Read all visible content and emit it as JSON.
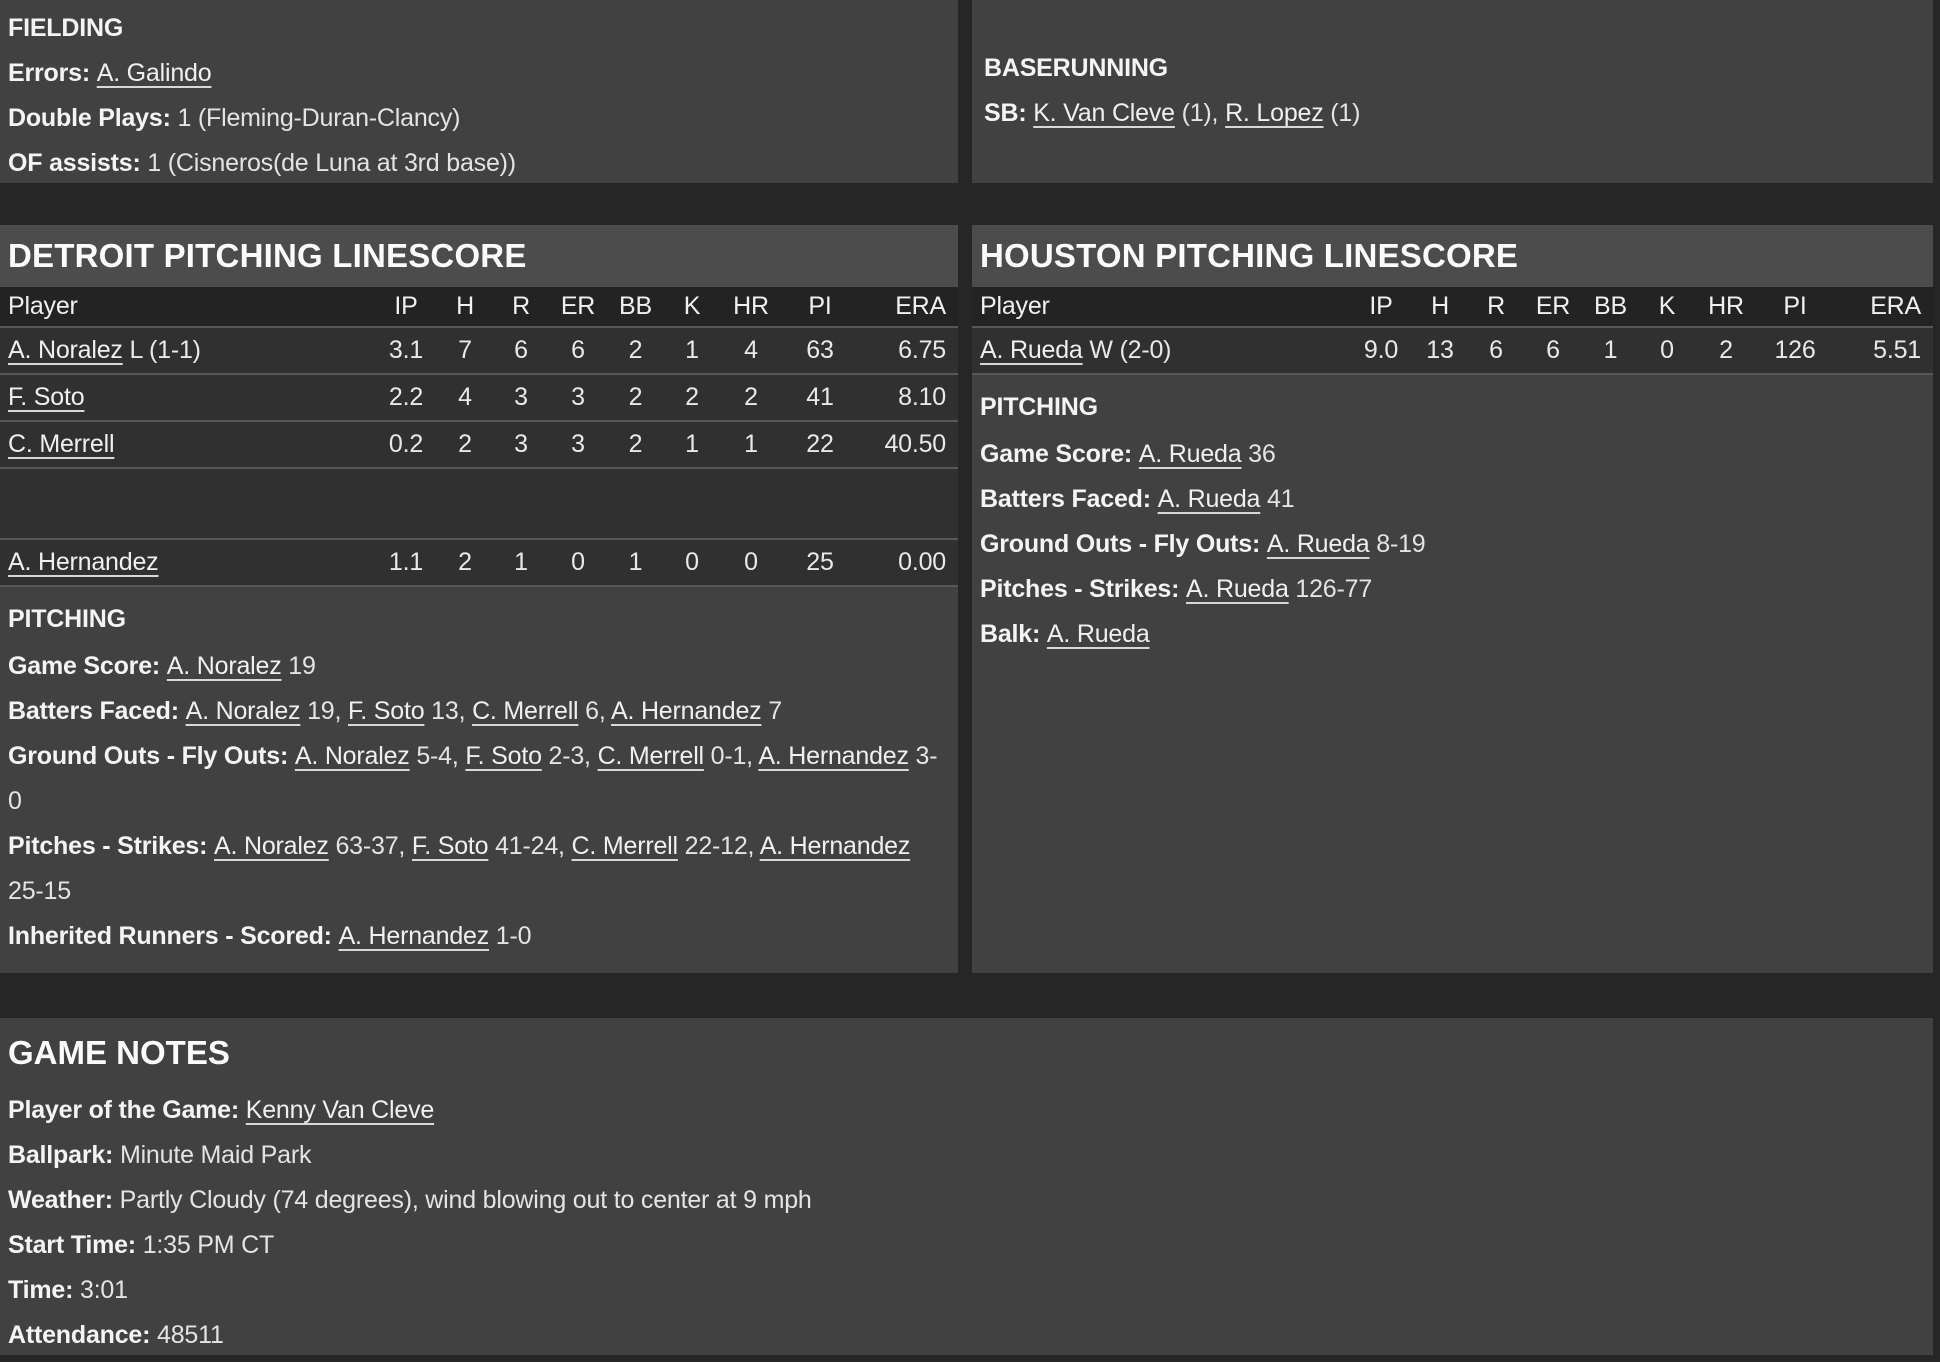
{
  "colors": {
    "page_background": "#262626",
    "panel_background": "#414141",
    "title_strip": "#4c4c4c",
    "table_header_row": "#232323",
    "table_data_row": "#303030",
    "row_separator": "#575757",
    "text": "#e9e9e9"
  },
  "fielding": {
    "title": "FIELDING",
    "lines": [
      {
        "label": "Errors:",
        "parts": [
          {
            "text": "A. Galindo",
            "link": true
          }
        ]
      },
      {
        "label": "Double Plays:",
        "parts": [
          {
            "text": "1 (Fleming-Duran-Clancy)"
          }
        ]
      },
      {
        "label": "OF assists:",
        "parts": [
          {
            "text": "1 (Cisneros(de Luna at 3rd base))"
          }
        ]
      }
    ]
  },
  "baserunning": {
    "title": "BASERUNNING",
    "lines": [
      {
        "label": "SB:",
        "parts": [
          {
            "text": "K. Van Cleve",
            "link": true
          },
          {
            "text": " (1), "
          },
          {
            "text": "R. Lopez",
            "link": true
          },
          {
            "text": " (1)"
          }
        ]
      }
    ]
  },
  "detroit_pitching": {
    "title": "DETROIT PITCHING LINESCORE",
    "columns": [
      "Player",
      "IP",
      "H",
      "R",
      "ER",
      "BB",
      "K",
      "HR",
      "PI",
      "ERA"
    ],
    "rows": [
      {
        "player": "A. Noralez",
        "decoration": "L (1-1)",
        "stats": [
          "3.1",
          "7",
          "6",
          "6",
          "2",
          "1",
          "4",
          "63",
          "6.75"
        ]
      },
      {
        "player": "F. Soto",
        "decoration": "",
        "stats": [
          "2.2",
          "4",
          "3",
          "3",
          "2",
          "2",
          "2",
          "41",
          "8.10"
        ]
      },
      {
        "player": "C. Merrell",
        "decoration": "",
        "stats": [
          "0.2",
          "2",
          "3",
          "3",
          "2",
          "1",
          "1",
          "22",
          "40.50"
        ]
      },
      {
        "blank": true
      },
      {
        "player": "A. Hernandez",
        "decoration": "",
        "stats": [
          "1.1",
          "2",
          "1",
          "0",
          "1",
          "0",
          "0",
          "25",
          "0.00"
        ]
      }
    ],
    "pitching_notes": {
      "title": "PITCHING",
      "lines": [
        {
          "label": "Game Score:",
          "parts": [
            {
              "text": "A. Noralez",
              "link": true
            },
            {
              "text": " 19"
            }
          ]
        },
        {
          "label": "Batters Faced:",
          "parts": [
            {
              "text": "A. Noralez",
              "link": true
            },
            {
              "text": " 19, "
            },
            {
              "text": "F. Soto",
              "link": true
            },
            {
              "text": " 13, "
            },
            {
              "text": "C. Merrell",
              "link": true
            },
            {
              "text": " 6, "
            },
            {
              "text": "A. Hernandez",
              "link": true
            },
            {
              "text": " 7"
            }
          ]
        },
        {
          "label": "Ground Outs - Fly Outs:",
          "parts": [
            {
              "text": "A. Noralez",
              "link": true
            },
            {
              "text": " 5-4, "
            },
            {
              "text": "F. Soto",
              "link": true
            },
            {
              "text": " 2-3, "
            },
            {
              "text": "C. Merrell",
              "link": true
            },
            {
              "text": " 0-1, "
            },
            {
              "text": "A. Hernandez",
              "link": true
            },
            {
              "text": " 3-0"
            }
          ]
        },
        {
          "label": "Pitches - Strikes:",
          "parts": [
            {
              "text": "A. Noralez",
              "link": true
            },
            {
              "text": " 63-37, "
            },
            {
              "text": "F. Soto",
              "link": true
            },
            {
              "text": " 41-24, "
            },
            {
              "text": "C. Merrell",
              "link": true
            },
            {
              "text": " 22-12, "
            },
            {
              "text": "A. Hernandez",
              "link": true
            },
            {
              "text": " 25-15"
            }
          ]
        },
        {
          "label": "Inherited Runners - Scored:",
          "parts": [
            {
              "text": "A. Hernandez",
              "link": true
            },
            {
              "text": " 1-0"
            }
          ]
        }
      ]
    }
  },
  "houston_pitching": {
    "title": "HOUSTON PITCHING LINESCORE",
    "columns": [
      "Player",
      "IP",
      "H",
      "R",
      "ER",
      "BB",
      "K",
      "HR",
      "PI",
      "ERA"
    ],
    "rows": [
      {
        "player": "A. Rueda",
        "decoration": "W (2-0)",
        "stats": [
          "9.0",
          "13",
          "6",
          "6",
          "1",
          "0",
          "2",
          "126",
          "5.51"
        ]
      }
    ],
    "pitching_notes": {
      "title": "PITCHING",
      "lines": [
        {
          "label": "Game Score:",
          "parts": [
            {
              "text": "A. Rueda",
              "link": true
            },
            {
              "text": " 36"
            }
          ]
        },
        {
          "label": "Batters Faced:",
          "parts": [
            {
              "text": "A. Rueda",
              "link": true
            },
            {
              "text": " 41"
            }
          ]
        },
        {
          "label": "Ground Outs - Fly Outs:",
          "parts": [
            {
              "text": "A. Rueda",
              "link": true
            },
            {
              "text": " 8-19"
            }
          ]
        },
        {
          "label": "Pitches - Strikes:",
          "parts": [
            {
              "text": "A. Rueda",
              "link": true
            },
            {
              "text": " 126-77"
            }
          ]
        },
        {
          "label": "Balk:",
          "parts": [
            {
              "text": "A. Rueda",
              "link": true
            }
          ]
        }
      ]
    }
  },
  "game_notes": {
    "title": "GAME NOTES",
    "lines": [
      {
        "label": "Player of the Game:",
        "parts": [
          {
            "text": "Kenny Van Cleve",
            "link": true
          }
        ]
      },
      {
        "label": "Ballpark:",
        "parts": [
          {
            "text": "Minute Maid Park"
          }
        ]
      },
      {
        "label": "Weather:",
        "parts": [
          {
            "text": "Partly Cloudy (74 degrees), wind blowing out to center at 9 mph"
          }
        ]
      },
      {
        "label": "Start Time:",
        "parts": [
          {
            "text": "1:35 PM CT"
          }
        ]
      },
      {
        "label": "Time:",
        "parts": [
          {
            "text": "3:01"
          }
        ]
      },
      {
        "label": "Attendance:",
        "parts": [
          {
            "text": "48511"
          }
        ]
      }
    ]
  }
}
